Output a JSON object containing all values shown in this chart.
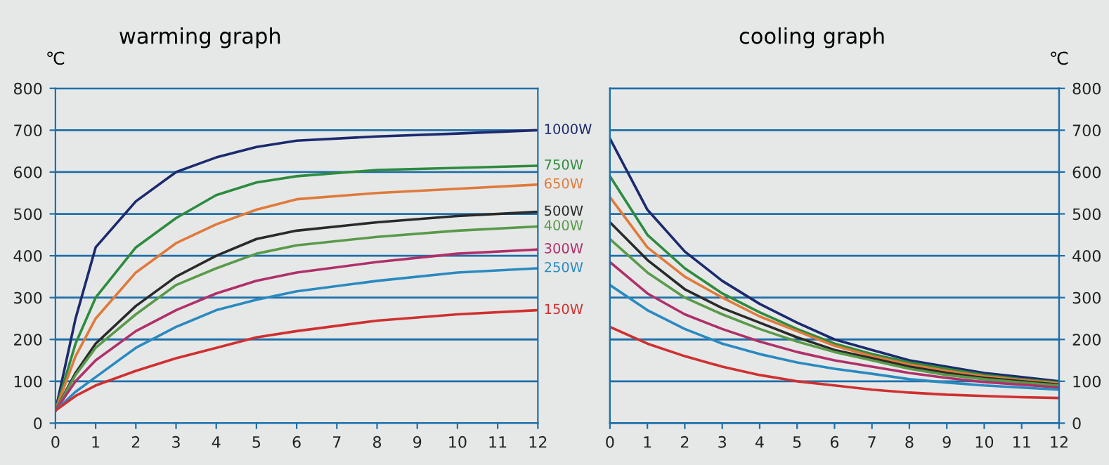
{
  "chart_data": [
    {
      "type": "line",
      "title": "warming graph",
      "ylabel": "℃",
      "xlim": [
        0,
        12
      ],
      "ylim": [
        0,
        800
      ],
      "xticks": [
        0,
        1,
        2,
        3,
        4,
        5,
        6,
        7,
        8,
        9,
        10,
        11,
        12
      ],
      "yticks": [
        0,
        100,
        200,
        300,
        400,
        500,
        600,
        700,
        800
      ],
      "grid": "y",
      "x": [
        0,
        0.5,
        1,
        2,
        3,
        4,
        5,
        6,
        8,
        10,
        12
      ],
      "series": [
        {
          "name": "1000W",
          "color": "#1c2a6e",
          "values": [
            30,
            250,
            420,
            530,
            600,
            635,
            660,
            675,
            685,
            692,
            700
          ]
        },
        {
          "name": "750W",
          "color": "#2e8b3e",
          "values": [
            30,
            190,
            300,
            420,
            490,
            545,
            575,
            590,
            605,
            610,
            615
          ]
        },
        {
          "name": "650W",
          "color": "#e07a3a",
          "values": [
            30,
            160,
            250,
            360,
            430,
            475,
            510,
            535,
            550,
            560,
            570
          ]
        },
        {
          "name": "500W",
          "color": "#2a2a2a",
          "values": [
            30,
            120,
            190,
            280,
            350,
            400,
            440,
            460,
            480,
            495,
            505
          ]
        },
        {
          "name": "400W",
          "color": "#5a9a4a",
          "values": [
            30,
            115,
            180,
            260,
            330,
            370,
            405,
            425,
            445,
            460,
            470
          ]
        },
        {
          "name": "300W",
          "color": "#b0306a",
          "values": [
            30,
            100,
            150,
            220,
            270,
            310,
            340,
            360,
            385,
            405,
            415
          ]
        },
        {
          "name": "250W",
          "color": "#2a8ac0",
          "values": [
            30,
            75,
            110,
            180,
            230,
            270,
            295,
            315,
            340,
            360,
            370
          ]
        },
        {
          "name": "150W",
          "color": "#d03030",
          "values": [
            30,
            65,
            90,
            125,
            155,
            180,
            205,
            220,
            245,
            260,
            270
          ]
        }
      ]
    },
    {
      "type": "line",
      "title": "cooling graph",
      "y2label": "℃",
      "xlim": [
        0,
        12
      ],
      "y2lim": [
        0,
        800
      ],
      "xticks": [
        0,
        1,
        2,
        3,
        4,
        5,
        6,
        7,
        8,
        9,
        10,
        11,
        12
      ],
      "y2ticks": [
        0,
        100,
        200,
        300,
        400,
        500,
        600,
        700,
        800
      ],
      "grid": "y",
      "x": [
        0,
        1,
        2,
        3,
        4,
        5,
        6,
        7,
        8,
        9,
        10,
        11,
        12
      ],
      "series": [
        {
          "axis": "y2",
          "color": "#1c2a6e",
          "values": [
            680,
            510,
            410,
            340,
            285,
            240,
            200,
            175,
            150,
            135,
            120,
            110,
            100
          ]
        },
        {
          "axis": "y2",
          "color": "#2e8b3e",
          "values": [
            590,
            450,
            370,
            310,
            265,
            225,
            190,
            165,
            145,
            130,
            115,
            105,
            97
          ]
        },
        {
          "axis": "y2",
          "color": "#e07a3a",
          "values": [
            540,
            420,
            350,
            300,
            255,
            220,
            185,
            160,
            140,
            125,
            112,
            103,
            95
          ]
        },
        {
          "axis": "y2",
          "color": "#2a2a2a",
          "values": [
            480,
            390,
            320,
            275,
            240,
            205,
            175,
            155,
            135,
            120,
            108,
            100,
            92
          ]
        },
        {
          "axis": "y2",
          "color": "#5a9a4a",
          "values": [
            440,
            360,
            300,
            260,
            225,
            195,
            170,
            150,
            130,
            115,
            105,
            97,
            90
          ]
        },
        {
          "axis": "y2",
          "color": "#b0306a",
          "values": [
            385,
            310,
            260,
            225,
            195,
            170,
            150,
            135,
            120,
            108,
            98,
            92,
            85
          ]
        },
        {
          "axis": "y2",
          "color": "#2a8ac0",
          "values": [
            330,
            270,
            225,
            190,
            165,
            145,
            130,
            118,
            105,
            97,
            90,
            85,
            80
          ]
        },
        {
          "axis": "y2",
          "color": "#d03030",
          "values": [
            230,
            190,
            160,
            135,
            115,
            100,
            90,
            80,
            73,
            68,
            65,
            62,
            60
          ]
        }
      ]
    }
  ]
}
